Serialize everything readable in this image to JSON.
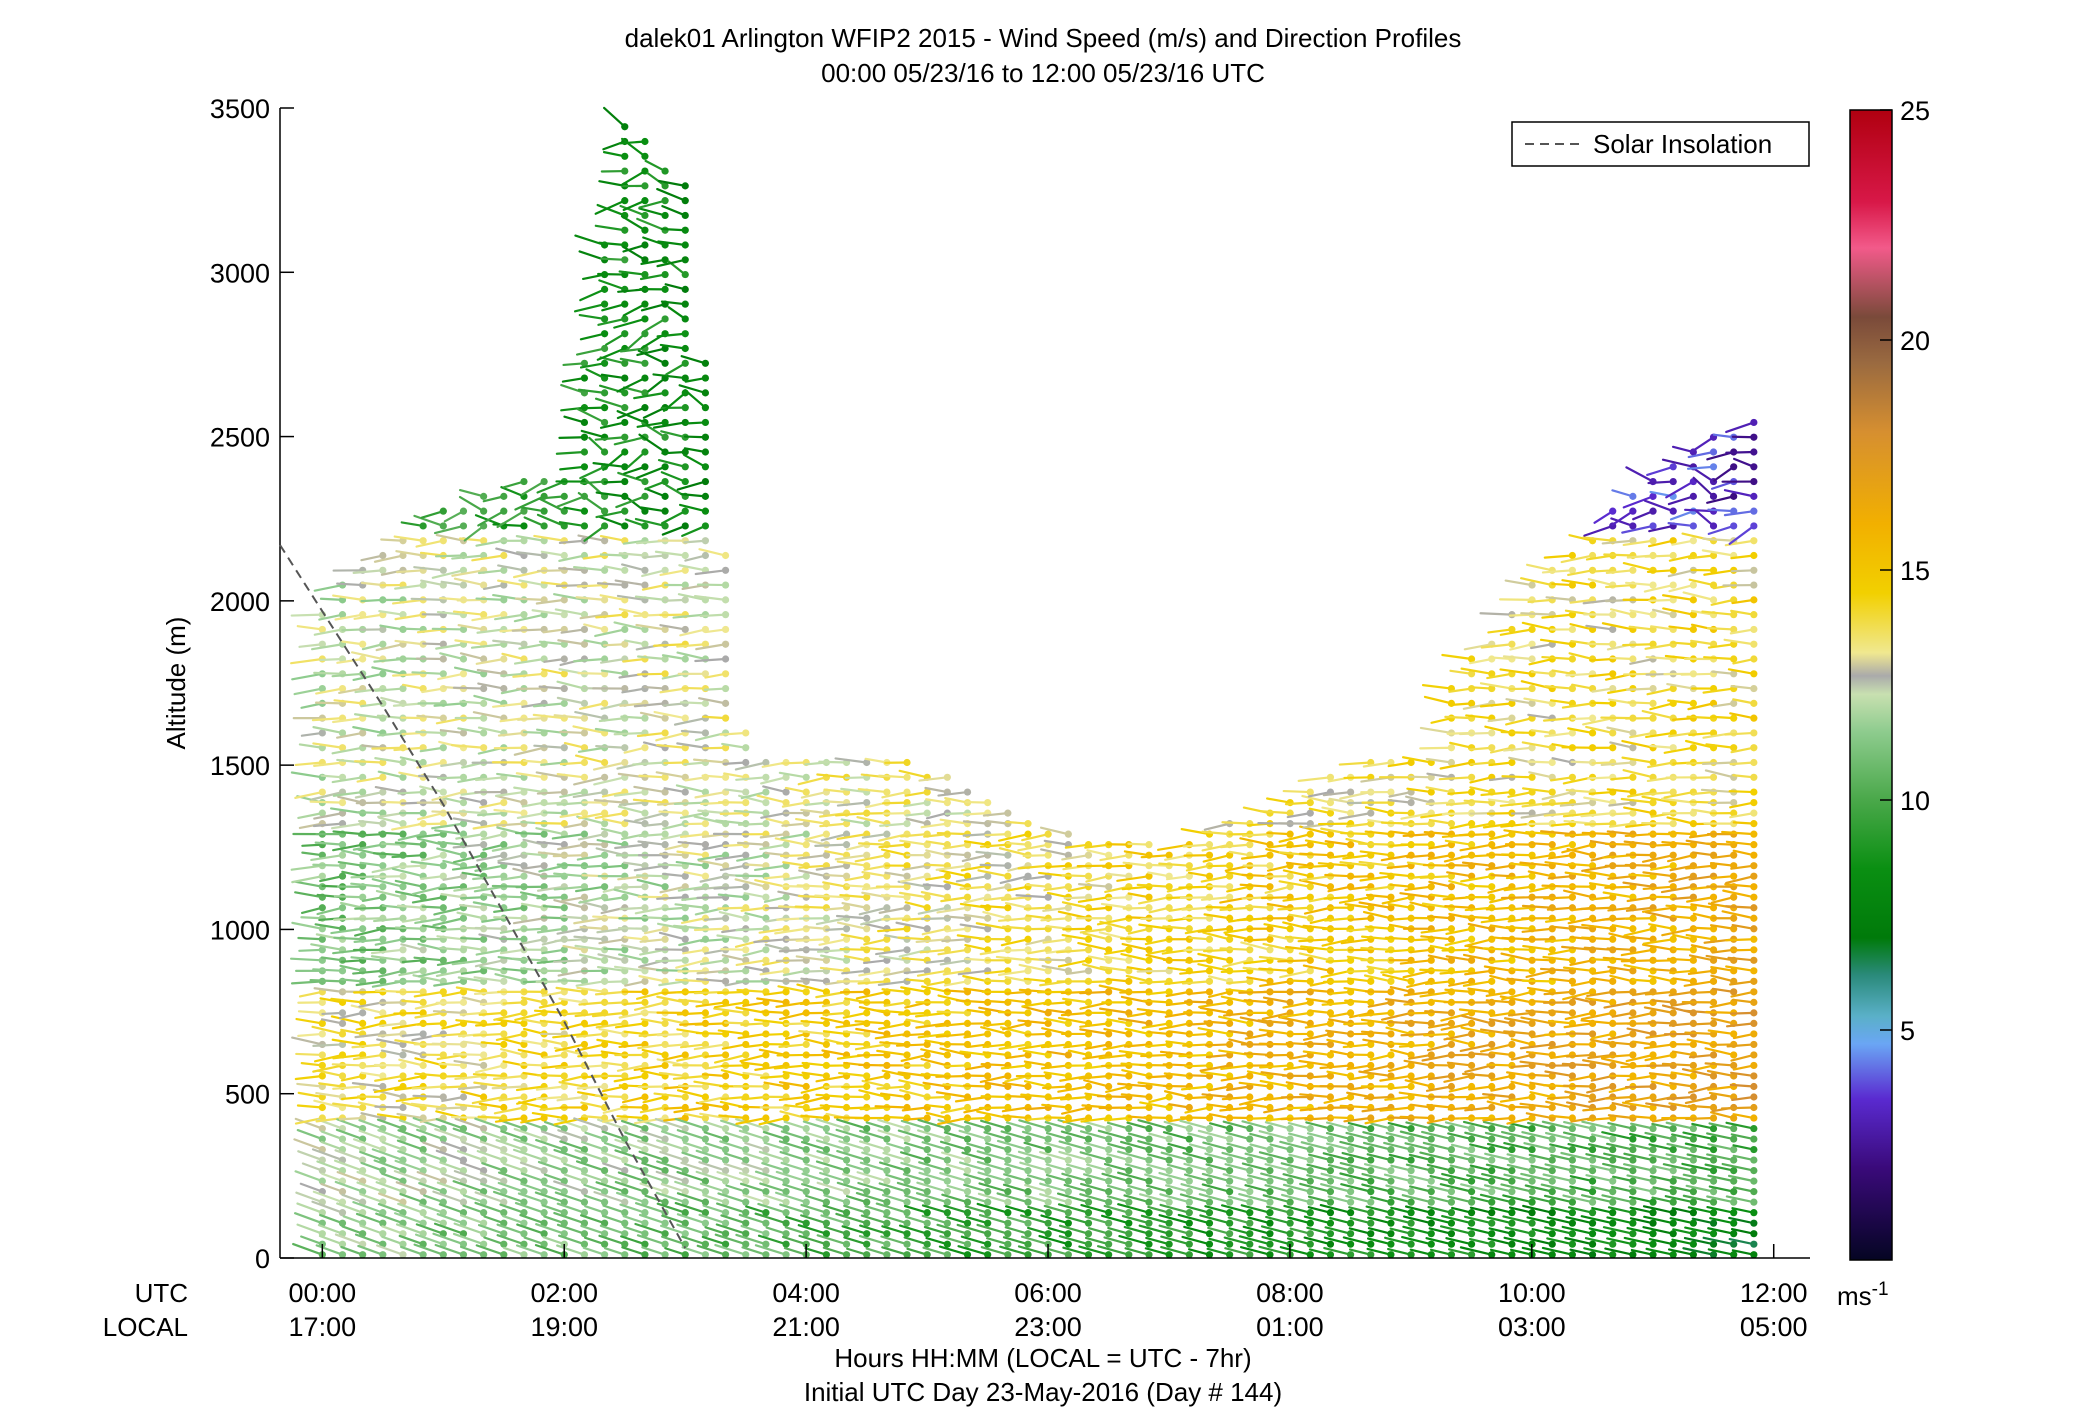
{
  "figure": {
    "title_line1": "dalek01 Arlington WFIP2 2015 - Wind Speed (m/s) and Direction Profiles",
    "title_line2": "00:00 05/23/16 to 12:00 05/23/16  UTC",
    "xlabel_line1": "Hours HH:MM  (LOCAL = UTC - 7hr)",
    "xlabel_line2": "Initial UTC Day 23-May-2016 (Day # 144)",
    "row_label_utc": "UTC",
    "row_label_local": "LOCAL",
    "legend_label": "Solar Insolation",
    "colorbar_unit": "ms",
    "colorbar_unit_exp": "-1"
  },
  "chart_data": {
    "type": "scatter",
    "title": "dalek01 Arlington WFIP2 2015 - Wind Speed (m/s) and Direction Profiles",
    "subtitle": "00:00 05/23/16 to 12:00 05/23/16  UTC",
    "ylabel": "Altitude (m)",
    "xlabel": "Hours HH:MM  (LOCAL = UTC - 7hr)",
    "xlim": [
      -0.35,
      12.3
    ],
    "ylim": [
      0,
      3500
    ],
    "x_ticks": [
      0,
      2,
      4,
      6,
      8,
      10,
      12
    ],
    "x_tick_labels_utc": [
      "00:00",
      "02:00",
      "04:00",
      "06:00",
      "08:00",
      "10:00",
      "12:00"
    ],
    "x_tick_labels_local": [
      "17:00",
      "19:00",
      "21:00",
      "23:00",
      "01:00",
      "03:00",
      "05:00"
    ],
    "y_ticks": [
      0,
      500,
      1000,
      1500,
      2000,
      2500,
      3000,
      3500
    ],
    "y_tick_labels": [
      "0",
      "500",
      "1000",
      "1500",
      "2000",
      "2500",
      "3000",
      "3500"
    ],
    "colorbar": {
      "label": "ms-1",
      "range": [
        0,
        25
      ],
      "ticks": [
        5,
        10,
        15,
        20,
        25
      ],
      "tick_labels": [
        "5",
        "10",
        "15",
        "20",
        "25"
      ],
      "stops": [
        {
          "v": 0,
          "color": "#050523"
        },
        {
          "v": 2,
          "color": "#3a0a7a"
        },
        {
          "v": 3.5,
          "color": "#5a2ad0"
        },
        {
          "v": 4.7,
          "color": "#6aa6f4"
        },
        {
          "v": 5.3,
          "color": "#5ab0c8"
        },
        {
          "v": 6.2,
          "color": "#2a8a7a"
        },
        {
          "v": 7,
          "color": "#007a0a"
        },
        {
          "v": 8.5,
          "color": "#0a8f12"
        },
        {
          "v": 10,
          "color": "#4aa84a"
        },
        {
          "v": 11.5,
          "color": "#8fcc8f"
        },
        {
          "v": 12.3,
          "color": "#c8e0b0"
        },
        {
          "v": 12.7,
          "color": "#aaaaaa"
        },
        {
          "v": 13.2,
          "color": "#f0e890"
        },
        {
          "v": 14.5,
          "color": "#f2d000"
        },
        {
          "v": 16,
          "color": "#f2b000"
        },
        {
          "v": 18,
          "color": "#d68f30"
        },
        {
          "v": 19.5,
          "color": "#9a6a40"
        },
        {
          "v": 20.5,
          "color": "#7a4a3a"
        },
        {
          "v": 22,
          "color": "#f25a8a"
        },
        {
          "v": 23,
          "color": "#d81848"
        },
        {
          "v": 25,
          "color": "#b00010"
        }
      ]
    },
    "grid": false,
    "legend": {
      "placement": "top-right",
      "entries": [
        "Solar Insolation"
      ]
    },
    "series": [
      {
        "name": "Solar Insolation",
        "line_style": "dashed",
        "color": "#555555",
        "x": [
          -0.35,
          0.5,
          1.0,
          1.5,
          2.0,
          2.5,
          3.0
        ],
        "y": [
          2170,
          1680,
          1380,
          1050,
          720,
          360,
          30
        ]
      }
    ],
    "wind_profiles": {
      "interval_hours": 0.1667,
      "profiles": [
        {
          "t": 0.0,
          "top": 2000
        },
        {
          "t": 1.0,
          "top": 2300
        },
        {
          "t": 2.0,
          "top": 2400
        },
        {
          "t": 2.5,
          "top": 3450
        },
        {
          "t": 3.0,
          "top": 3300
        },
        {
          "t": 3.5,
          "top": 1600
        },
        {
          "t": 4.0,
          "top": 1650
        },
        {
          "t": 5.0,
          "top": 1500
        },
        {
          "t": 6.0,
          "top": 1300
        },
        {
          "t": 7.0,
          "top": 1250
        },
        {
          "t": 8.0,
          "top": 1400
        },
        {
          "t": 9.0,
          "top": 1600
        },
        {
          "t": 10.0,
          "top": 2050
        },
        {
          "t": 11.0,
          "top": 2400
        },
        {
          "t": 12.0,
          "top": 2600
        }
      ],
      "speed_layers": [
        {
          "alt": [
            0,
            170
          ],
          "speed_0h": 11.5,
          "speed_12h": 7.5
        },
        {
          "alt": [
            170,
            420
          ],
          "speed_0h": 12.0,
          "speed_12h": 10.0
        },
        {
          "alt": [
            420,
            820
          ],
          "speed_0h": 13.5,
          "speed_12h": 17.0
        },
        {
          "alt": [
            820,
            1300
          ],
          "speed_0h": 11.0,
          "speed_12h": 16.5
        },
        {
          "alt": [
            1300,
            2200
          ],
          "speed_0h": 12.5,
          "speed_12h": 14.0
        },
        {
          "alt": [
            2200,
            3500
          ],
          "speed_0h": 10.0,
          "speed_12h": 3.0
        }
      ]
    }
  }
}
